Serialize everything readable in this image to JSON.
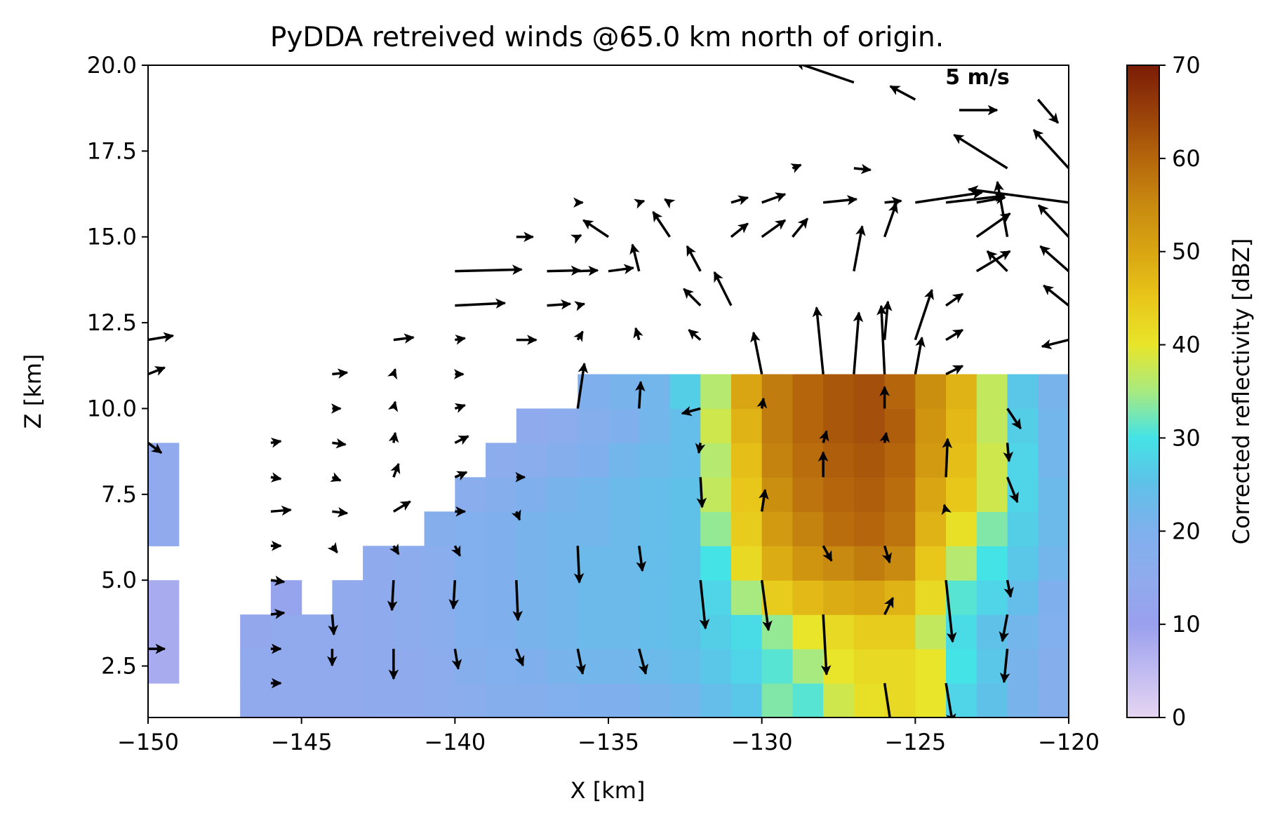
{
  "chart_data": {
    "type": "heatmap",
    "title": "PyDDA retreived winds @65.0 km north of origin.",
    "xlabel": "X [km]",
    "ylabel": "Z [km]",
    "xlim": [
      -150,
      -120
    ],
    "ylim": [
      1,
      20
    ],
    "xticks": [
      -150,
      -145,
      -140,
      -135,
      -130,
      -125,
      -120
    ],
    "xtick_labels": [
      "−150",
      "−145",
      "−140",
      "−135",
      "−130",
      "−125",
      "−120"
    ],
    "yticks": [
      2.5,
      5.0,
      7.5,
      10.0,
      12.5,
      15.0,
      17.5,
      20.0
    ],
    "ytick_labels": [
      "2.5",
      "5.0",
      "7.5",
      "10.0",
      "12.5",
      "15.0",
      "17.5",
      "20.0"
    ],
    "colorbar": {
      "label": "Corrected reflectivity [dBZ]",
      "range": [
        0,
        70
      ],
      "ticks": [
        0,
        10,
        20,
        30,
        40,
        50,
        60,
        70
      ],
      "tick_labels": [
        "0",
        "10",
        "20",
        "30",
        "40",
        "50",
        "60",
        "70"
      ],
      "colormap_stops": [
        [
          0,
          "#e6d5f2"
        ],
        [
          10,
          "#9aa0ee"
        ],
        [
          15,
          "#8fabed"
        ],
        [
          20,
          "#7fb0ed"
        ],
        [
          25,
          "#5fc0e8"
        ],
        [
          30,
          "#44e3e6"
        ],
        [
          35,
          "#a8ea80"
        ],
        [
          40,
          "#e8e52a"
        ],
        [
          45,
          "#e8c61a"
        ],
        [
          50,
          "#d9a512"
        ],
        [
          55,
          "#c88a10"
        ],
        [
          60,
          "#b5660c"
        ],
        [
          65,
          "#98400a"
        ],
        [
          70,
          "#7a1c05"
        ]
      ]
    },
    "grid_x_edges": [
      -150,
      -149,
      -148,
      -147,
      -146,
      -145,
      -144,
      -143,
      -142,
      -141,
      -140,
      -139,
      -138,
      -137,
      -136,
      -135,
      -134,
      -133,
      -132,
      -131,
      -130,
      -129,
      -128,
      -127,
      -126,
      -125,
      -124,
      -123,
      -122,
      -121,
      -120
    ],
    "grid_z_edges": [
      1,
      2,
      3,
      4,
      5,
      6,
      7,
      8,
      9,
      10,
      11
    ],
    "reflectivity_dbz_rows_bottom_to_top": [
      [
        null,
        null,
        null,
        14,
        14,
        14,
        14,
        15,
        15,
        16,
        17,
        18,
        18,
        19,
        20,
        20,
        21,
        22,
        24,
        26,
        33,
        31,
        38,
        41,
        42,
        40,
        28,
        25,
        21,
        18
      ],
      [
        8,
        null,
        null,
        14,
        14,
        14,
        14,
        15,
        15,
        16,
        18,
        19,
        20,
        21,
        22,
        22,
        23,
        24,
        26,
        28,
        31,
        35,
        40,
        42,
        42,
        40,
        30,
        26,
        21,
        18
      ],
      [
        8,
        null,
        null,
        13,
        14,
        14,
        14,
        15,
        16,
        17,
        19,
        20,
        21,
        22,
        23,
        23,
        24,
        25,
        27,
        29,
        34,
        40,
        42,
        44,
        44,
        37,
        29,
        25,
        22,
        19
      ],
      [
        8,
        null,
        null,
        null,
        12,
        null,
        14,
        15,
        16,
        17,
        19,
        20,
        21,
        22,
        23,
        23,
        24,
        25,
        28,
        35,
        44,
        47,
        49,
        50,
        48,
        42,
        31,
        28,
        24,
        20
      ],
      [
        null,
        null,
        null,
        null,
        null,
        null,
        null,
        15,
        16,
        17,
        19,
        20,
        21,
        22,
        23,
        23,
        24,
        25,
        30,
        42,
        49,
        53,
        55,
        57,
        55,
        45,
        36,
        30,
        26,
        22
      ],
      [
        14,
        null,
        null,
        null,
        null,
        null,
        null,
        null,
        null,
        18,
        19,
        20,
        21,
        22,
        22,
        23,
        24,
        25,
        34,
        44,
        52,
        56,
        59,
        60,
        58,
        48,
        41,
        33,
        27,
        23
      ],
      [
        14,
        null,
        null,
        null,
        null,
        null,
        null,
        null,
        null,
        null,
        17,
        18,
        20,
        21,
        22,
        23,
        24,
        25,
        37,
        45,
        54,
        58,
        60,
        61,
        59,
        50,
        45,
        38,
        28,
        23
      ],
      [
        14,
        null,
        null,
        null,
        null,
        null,
        null,
        null,
        null,
        null,
        null,
        16,
        17,
        18,
        20,
        22,
        23,
        24,
        36,
        46,
        56,
        59,
        61,
        62,
        60,
        52,
        46,
        38,
        28,
        22
      ],
      [
        null,
        null,
        null,
        null,
        null,
        null,
        null,
        null,
        null,
        null,
        null,
        null,
        15,
        16,
        18,
        20,
        22,
        24,
        38,
        48,
        57,
        60,
        62,
        63,
        61,
        53,
        47,
        37,
        27,
        22
      ],
      [
        null,
        null,
        null,
        null,
        null,
        null,
        null,
        null,
        null,
        null,
        null,
        null,
        null,
        null,
        20,
        21,
        22,
        27,
        36,
        50,
        57,
        60,
        62,
        63,
        60,
        54,
        48,
        37,
        26,
        21
      ]
    ],
    "quiver_key": {
      "label": "5 m/s",
      "u": 5
    },
    "wind_vectors": [
      {
        "x": -150,
        "z": 12,
        "u": 1.5,
        "v": 0.25
      },
      {
        "x": -150,
        "z": 11,
        "u": 1,
        "v": 0.4
      },
      {
        "x": -150,
        "z": 9,
        "u": 0.8,
        "v": -0.6
      },
      {
        "x": -150,
        "z": 3,
        "u": 1.0,
        "v": 0
      },
      {
        "x": -146,
        "z": 9,
        "u": 0.6,
        "v": 0.1
      },
      {
        "x": -146,
        "z": 8,
        "u": 0.6,
        "v": -0.1
      },
      {
        "x": -146,
        "z": 7,
        "u": 1.2,
        "v": 0.1
      },
      {
        "x": -146,
        "z": 6,
        "u": 0.6,
        "v": 0
      },
      {
        "x": -146,
        "z": 5,
        "u": 0.8,
        "v": -0.1
      },
      {
        "x": -146,
        "z": 4,
        "u": 0.8,
        "v": 0.1
      },
      {
        "x": -146,
        "z": 3,
        "u": 0.6,
        "v": 0
      },
      {
        "x": -146,
        "z": 2,
        "u": 0.6,
        "v": 0
      },
      {
        "x": -144,
        "z": 11,
        "u": 0.9,
        "v": 0.1
      },
      {
        "x": -144,
        "z": 10,
        "u": 0.5,
        "v": 0
      },
      {
        "x": -144,
        "z": 9,
        "u": 0.8,
        "v": -0.1
      },
      {
        "x": -144,
        "z": 8,
        "u": 0.5,
        "v": -0.2
      },
      {
        "x": -144,
        "z": 7,
        "u": 0.9,
        "v": -0.1
      },
      {
        "x": -144,
        "z": 6,
        "u": 0.3,
        "v": -0.4
      },
      {
        "x": -144,
        "z": 4,
        "u": 0.1,
        "v": -1.2
      },
      {
        "x": -144,
        "z": 3,
        "u": 0.0,
        "v": -1.0
      },
      {
        "x": -142,
        "z": 12,
        "u": 1.2,
        "v": 0.15
      },
      {
        "x": -142,
        "z": 11,
        "u": 0.1,
        "v": 0.3
      },
      {
        "x": -142,
        "z": 10,
        "u": 0.1,
        "v": 0.4
      },
      {
        "x": -142,
        "z": 9,
        "u": 0.1,
        "v": 0.6
      },
      {
        "x": -142,
        "z": 8,
        "u": 0.3,
        "v": 0.8
      },
      {
        "x": -142,
        "z": 7,
        "u": 1.0,
        "v": 0.6
      },
      {
        "x": -142,
        "z": 6,
        "u": 0.3,
        "v": -0.5
      },
      {
        "x": -142,
        "z": 5,
        "u": -0.1,
        "v": -1.8
      },
      {
        "x": -142,
        "z": 3,
        "u": 0.0,
        "v": -1.8
      },
      {
        "x": -140,
        "z": 12,
        "u": 0.6,
        "v": 0.1
      },
      {
        "x": -140,
        "z": 11,
        "u": 0.5,
        "v": 0
      },
      {
        "x": -140,
        "z": 10,
        "u": 0.6,
        "v": 0.2
      },
      {
        "x": -140,
        "z": 9,
        "u": 0.8,
        "v": 0.4
      },
      {
        "x": -140,
        "z": 8,
        "u": 0.7,
        "v": 0.3
      },
      {
        "x": -140,
        "z": 7,
        "u": 0.6,
        "v": 0
      },
      {
        "x": -140,
        "z": 6,
        "u": 0.3,
        "v": -0.6
      },
      {
        "x": -140,
        "z": 5,
        "u": -0.1,
        "v": -1.7
      },
      {
        "x": -140,
        "z": 3,
        "u": 0.2,
        "v": -1.2
      },
      {
        "x": -140,
        "z": 14,
        "u": 4,
        "v": 0.1
      },
      {
        "x": -140,
        "z": 13,
        "u": 3,
        "v": 0.15
      },
      {
        "x": -138,
        "z": 15,
        "u": 1,
        "v": 0
      },
      {
        "x": -138,
        "z": 12,
        "u": 1.2,
        "v": 0
      },
      {
        "x": -138,
        "z": 8,
        "u": 0.5,
        "v": 0
      },
      {
        "x": -138,
        "z": 7,
        "u": 0.2,
        "v": -0.5
      },
      {
        "x": -138,
        "z": 5,
        "u": 0.1,
        "v": -2.4
      },
      {
        "x": -138,
        "z": 3,
        "u": 0.4,
        "v": -1
      },
      {
        "x": -137,
        "z": 14,
        "u": 2,
        "v": 0.05
      },
      {
        "x": -137,
        "z": 13,
        "u": 1.4,
        "v": 0.1
      },
      {
        "x": -136,
        "z": 16,
        "u": 0.3,
        "v": 0
      },
      {
        "x": -136,
        "z": 15,
        "u": 0.2,
        "v": 0.1
      },
      {
        "x": -136,
        "z": 14,
        "u": 1.2,
        "v": 0.05
      },
      {
        "x": -136,
        "z": 13,
        "u": 0.4,
        "v": 0.1
      },
      {
        "x": -136,
        "z": 12,
        "u": 0.3,
        "v": 0.5
      },
      {
        "x": -136,
        "z": 10,
        "u": 0.4,
        "v": 2.7
      },
      {
        "x": -136,
        "z": 6,
        "u": 0.1,
        "v": -2.2
      },
      {
        "x": -136,
        "z": 3,
        "u": 0.3,
        "v": -1.5
      },
      {
        "x": -135,
        "z": 14,
        "u": 1.5,
        "v": 0.2
      },
      {
        "x": -135,
        "z": 15,
        "u": -1.5,
        "v": 1
      },
      {
        "x": -134,
        "z": 16,
        "u": 0.3,
        "v": 0.1
      },
      {
        "x": -134,
        "z": 14,
        "u": -0.4,
        "v": 1.6
      },
      {
        "x": -134,
        "z": 12,
        "u": -0.2,
        "v": 0.7
      },
      {
        "x": -134,
        "z": 10,
        "u": 0.1,
        "v": 1.6
      },
      {
        "x": -134,
        "z": 6,
        "u": 0.2,
        "v": -1.5
      },
      {
        "x": -134,
        "z": 3,
        "u": 0.4,
        "v": -1.5
      },
      {
        "x": -133,
        "z": 16,
        "u": -0.3,
        "v": 0.2
      },
      {
        "x": -133,
        "z": 15,
        "u": -1,
        "v": 1.5
      },
      {
        "x": -132,
        "z": 14,
        "u": -0.8,
        "v": 1.5
      },
      {
        "x": -132,
        "z": 13,
        "u": -1,
        "v": 1
      },
      {
        "x": -132,
        "z": 12,
        "u": -0.7,
        "v": 0.6
      },
      {
        "x": -132,
        "z": 10,
        "u": -1.1,
        "v": -0.3
      },
      {
        "x": -132,
        "z": 9,
        "u": -0.1,
        "v": -0.6
      },
      {
        "x": -132,
        "z": 8,
        "u": 0.1,
        "v": -1.8
      },
      {
        "x": -132,
        "z": 5,
        "u": 0.3,
        "v": -2.9
      },
      {
        "x": -131,
        "z": 16,
        "u": 1,
        "v": 0.3
      },
      {
        "x": -131,
        "z": 15,
        "u": 1,
        "v": 0.8
      },
      {
        "x": -131,
        "z": 13,
        "u": -1,
        "v": 2
      },
      {
        "x": -130,
        "z": 11,
        "u": -0.5,
        "v": 2.5
      },
      {
        "x": -130,
        "z": 10,
        "u": 0.1,
        "v": 0.6
      },
      {
        "x": -130,
        "z": 7,
        "u": 0.2,
        "v": 1.3
      },
      {
        "x": -130,
        "z": 5,
        "u": 0.4,
        "v": -3
      },
      {
        "x": -130,
        "z": 16,
        "u": 1.4,
        "v": 0.5
      },
      {
        "x": -130,
        "z": 15,
        "u": 1.4,
        "v": 1
      },
      {
        "x": -129,
        "z": 17,
        "u": 0.5,
        "v": 0.2
      },
      {
        "x": -129,
        "z": 15,
        "u": 0.9,
        "v": 1.1
      },
      {
        "x": -128,
        "z": 16,
        "u": 2,
        "v": 0.2
      },
      {
        "x": -128,
        "z": 11,
        "u": -0.4,
        "v": 4
      },
      {
        "x": -128,
        "z": 9,
        "u": 0.2,
        "v": 0.7
      },
      {
        "x": -128,
        "z": 8,
        "u": 0,
        "v": 1.5
      },
      {
        "x": -128,
        "z": 6,
        "u": 0.5,
        "v": -0.9
      },
      {
        "x": -128,
        "z": 4,
        "u": 0.2,
        "v": -3.6
      },
      {
        "x": -127,
        "z": 17,
        "u": 1,
        "v": -0.1
      },
      {
        "x": -127,
        "z": 14,
        "u": 0.5,
        "v": 2.7
      },
      {
        "x": -127,
        "z": 11,
        "u": 0.3,
        "v": 3.7
      },
      {
        "x": -126,
        "z": 16,
        "u": 1,
        "v": 0.1
      },
      {
        "x": -126,
        "z": 15,
        "u": 0.7,
        "v": 2
      },
      {
        "x": -126,
        "z": 12,
        "u": 0.2,
        "v": 2.3
      },
      {
        "x": -126,
        "z": 11,
        "u": -0.2,
        "v": 4.1
      },
      {
        "x": -126,
        "z": 10,
        "u": 0,
        "v": 1.3
      },
      {
        "x": -126,
        "z": 9,
        "u": 0.1,
        "v": 0.6
      },
      {
        "x": -126,
        "z": 6,
        "u": 0.3,
        "v": -1
      },
      {
        "x": -126,
        "z": 4,
        "u": 0.5,
        "v": 1
      },
      {
        "x": -126,
        "z": 2,
        "u": 0.4,
        "v": -2.6
      },
      {
        "x": -125,
        "z": 16,
        "u": 4,
        "v": 0.6
      },
      {
        "x": -125,
        "z": 12,
        "u": 1,
        "v": 3
      },
      {
        "x": -125,
        "z": 11,
        "u": 0.4,
        "v": 2.2
      },
      {
        "x": -124,
        "z": 8,
        "u": 0.1,
        "v": 2.3
      },
      {
        "x": -124,
        "z": 7,
        "u": -0.1,
        "v": 0.4
      },
      {
        "x": -124,
        "z": 5,
        "u": 0.4,
        "v": -3.7
      },
      {
        "x": -124,
        "z": 2,
        "u": 0.4,
        "v": -2.4
      },
      {
        "x": -124,
        "z": 13,
        "u": 1,
        "v": 0.7
      },
      {
        "x": -124,
        "z": 12,
        "u": 1,
        "v": 0.6
      },
      {
        "x": -124,
        "z": 11,
        "u": 1,
        "v": 0.5
      },
      {
        "x": -124,
        "z": 16,
        "u": 3.5,
        "v": 0.4
      },
      {
        "x": -123,
        "z": 16,
        "u": 1.7,
        "v": 0.3
      },
      {
        "x": -123,
        "z": 15,
        "u": 2,
        "v": 1.4
      },
      {
        "x": -123,
        "z": 14,
        "u": 2,
        "v": 1.2
      },
      {
        "x": -122,
        "z": 15,
        "u": -0.6,
        "v": 3.3
      },
      {
        "x": -122,
        "z": 17,
        "u": -3.2,
        "v": 2
      },
      {
        "x": -122,
        "z": 14,
        "u": -1.2,
        "v": 1.2
      },
      {
        "x": -122,
        "z": 10,
        "u": 0.8,
        "v": -1.2
      },
      {
        "x": -122,
        "z": 9,
        "u": 0.1,
        "v": -1.1
      },
      {
        "x": -122,
        "z": 8,
        "u": 0.6,
        "v": -1.5
      },
      {
        "x": -122,
        "z": 5,
        "u": 0.2,
        "v": -1
      },
      {
        "x": -122,
        "z": 4,
        "u": -0.3,
        "v": -1.6
      },
      {
        "x": -122,
        "z": 3,
        "u": -0.2,
        "v": -2
      },
      {
        "x": -121,
        "z": 19,
        "u": 1.2,
        "v": -1.4
      },
      {
        "x": -120,
        "z": 17,
        "u": -2.1,
        "v": 2.3
      },
      {
        "x": -120,
        "z": 16,
        "u": -6,
        "v": 0.8
      },
      {
        "x": -120,
        "z": 15,
        "u": -1.8,
        "v": 1.9
      },
      {
        "x": -120,
        "z": 14,
        "u": -1.7,
        "v": 1.5
      },
      {
        "x": -120,
        "z": 13,
        "u": -1.5,
        "v": 1.2
      },
      {
        "x": -120,
        "z": 12,
        "u": -1.6,
        "v": -0.4
      },
      {
        "x": -127,
        "z": 19.5,
        "u": -3.5,
        "v": 1.2
      },
      {
        "x": -125,
        "z": 19,
        "u": -1.5,
        "v": 0.8
      }
    ]
  }
}
